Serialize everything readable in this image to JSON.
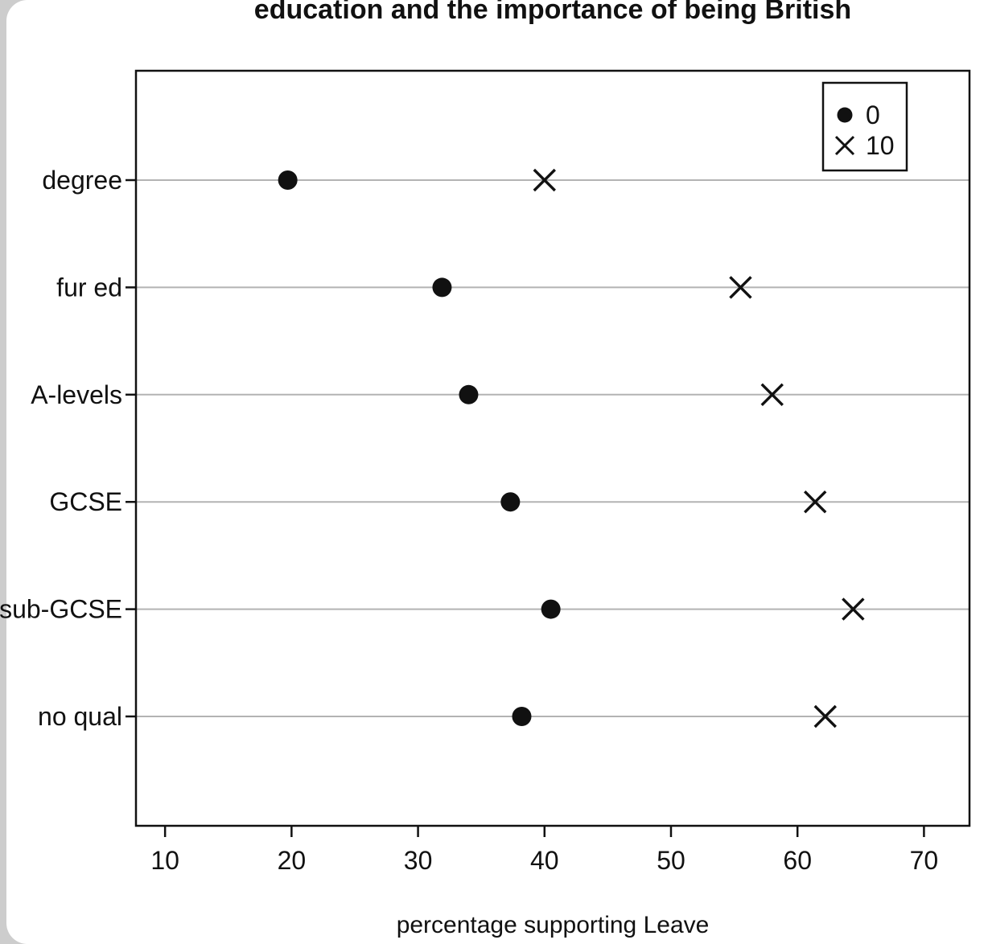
{
  "chart_data": {
    "type": "scatter",
    "variant": "dotchart",
    "title": "education and the importance of being British",
    "xlabel": "percentage supporting Leave",
    "categories": [
      "degree",
      "fur ed",
      "A-levels",
      "GCSE",
      "sub-GCSE",
      "no qual"
    ],
    "series": [
      {
        "name": "0",
        "marker": "filled-circle",
        "values": [
          19.7,
          31.9,
          34.0,
          37.3,
          40.5,
          38.2
        ]
      },
      {
        "name": "10",
        "marker": "x-cross",
        "values": [
          40.0,
          55.5,
          58.0,
          61.4,
          64.4,
          62.2
        ]
      }
    ],
    "xticks": [
      10,
      20,
      30,
      40,
      50,
      60,
      70
    ],
    "xlim": [
      7.7,
      73.6
    ],
    "grid": "horizontal",
    "legend_position": "top-right",
    "colors": {
      "points": "#111111",
      "gridline": "#b3b3b3",
      "axis": "#111111",
      "background": "#ffffff",
      "page_edge": "#cdcdcd"
    }
  }
}
